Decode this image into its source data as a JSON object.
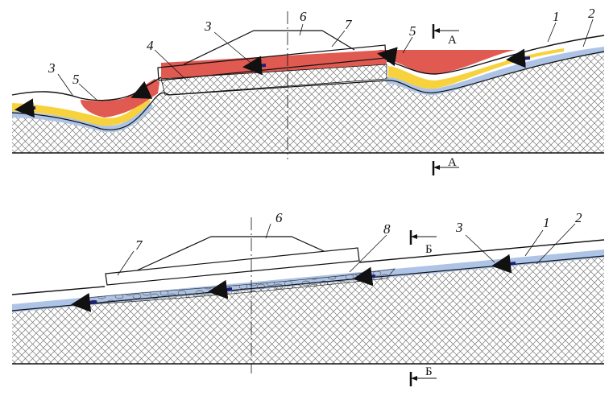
{
  "top_labels": {
    "surface": "1",
    "water_layer": "2",
    "flow_left": "3",
    "flow_upper": "3",
    "foundation": "4",
    "frost_left": "5",
    "frost_right": "5",
    "building": "6",
    "slab": "7"
  },
  "top_section": {
    "upper": "А",
    "lower": "А"
  },
  "bottom_labels": {
    "surface": "1",
    "water_layer": "2",
    "flow": "3",
    "building": "6",
    "slab": "7",
    "gravel": "8"
  },
  "bottom_section": {
    "upper": "Б",
    "lower": "Б"
  },
  "colors": {
    "red": "#e05a52",
    "yellow": "#f7d23c",
    "blue": "#aec4e6",
    "arrow": "#1c1e7a",
    "line": "#111111"
  },
  "icons": [
    "flow-arrow-icon",
    "section-cut-icon"
  ]
}
